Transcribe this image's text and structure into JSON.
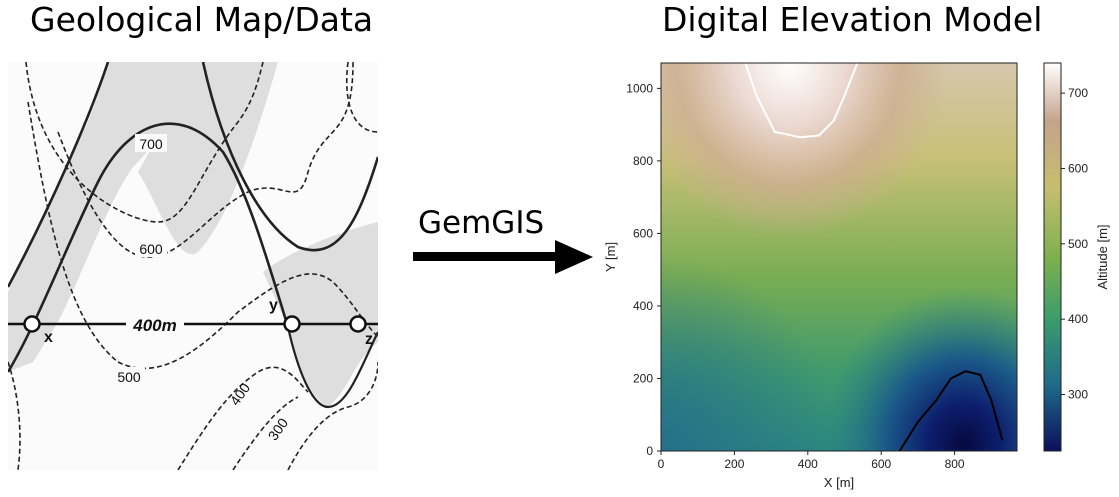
{
  "left_panel": {
    "title": "Geological Map/Data",
    "map": {
      "contour_labels": [
        "700",
        "600",
        "500",
        "400",
        "300"
      ],
      "line_label": "400m",
      "points": [
        "x",
        "y",
        "z"
      ]
    }
  },
  "arrow": {
    "label": "GemGIS"
  },
  "right_panel": {
    "title": "Digital Elevation Model",
    "chart_data": {
      "type": "heatmap",
      "xlabel": "X [m]",
      "ylabel": "Y [m]",
      "colorbar_label": "Altitude [m]",
      "xlim": [
        0,
        970
      ],
      "ylim": [
        0,
        1070
      ],
      "xticks": [
        "0",
        "200",
        "400",
        "600",
        "800"
      ],
      "yticks": [
        "0",
        "200",
        "400",
        "600",
        "800",
        "1000"
      ],
      "colorbar_ticks": [
        "300",
        "400",
        "500",
        "600",
        "700"
      ],
      "colorbar_range": [
        225,
        740
      ],
      "colormap": [
        "#0b0f5c",
        "#1f6a8a",
        "#3b9c6c",
        "#7fb04e",
        "#c6be6e",
        "#c4a38c",
        "#ffffff"
      ],
      "contours": [
        {
          "level": 700,
          "color": "#ffffff",
          "x": [
            230,
            260,
            310,
            380,
            430,
            470,
            500,
            535
          ],
          "y": [
            1070,
            980,
            880,
            865,
            870,
            910,
            980,
            1070
          ]
        },
        {
          "level": 300,
          "color": "#000000",
          "x": [
            650,
            700,
            750,
            790,
            830,
            870,
            900,
            930
          ],
          "y": [
            0,
            80,
            140,
            200,
            220,
            210,
            140,
            30
          ]
        }
      ],
      "grid": false
    }
  }
}
